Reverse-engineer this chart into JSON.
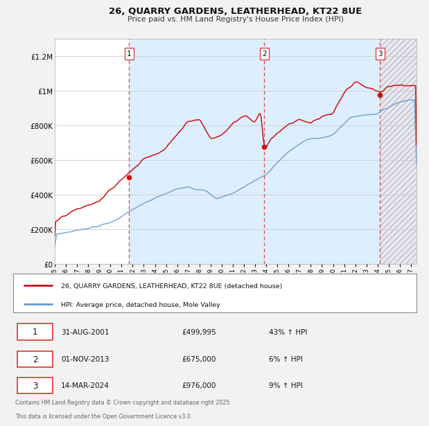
{
  "title": "26, QUARRY GARDENS, LEATHERHEAD, KT22 8UE",
  "subtitle": "Price paid vs. HM Land Registry's House Price Index (HPI)",
  "legend_label_red": "26, QUARRY GARDENS, LEATHERHEAD, KT22 8UE (detached house)",
  "legend_label_blue": "HPI: Average price, detached house, Mole Valley",
  "footnote": "Contains HM Land Registry data © Crown copyright and database right 2025.\nThis data is licensed under the Open Government Licence v3.0.",
  "transactions": [
    {
      "num": "1",
      "date": "31-AUG-2001",
      "price": "£499,995",
      "hpi": "43% ↑ HPI",
      "x_year": 2001.67
    },
    {
      "num": "2",
      "date": "01-NOV-2013",
      "price": "£675,000",
      "hpi": "6% ↑ HPI",
      "x_year": 2013.83
    },
    {
      "num": "3",
      "date": "14-MAR-2024",
      "price": "£976,000",
      "hpi": "9% ↑ HPI",
      "x_year": 2024.21
    }
  ],
  "xlim": [
    1995.0,
    2027.5
  ],
  "ylim": [
    0,
    1300000
  ],
  "yticks": [
    0,
    200000,
    400000,
    600000,
    800000,
    1000000,
    1200000
  ],
  "ytick_labels": [
    "£0",
    "£200K",
    "£400K",
    "£600K",
    "£800K",
    "£1M",
    "£1.2M"
  ],
  "bg_color": "#f2f2f2",
  "plot_bg": "#ffffff",
  "red_color": "#cc1111",
  "blue_color": "#6699cc",
  "vline_color": "#dd3333",
  "shade_color": "#ddeeff",
  "hatch_color": "#ccccdd"
}
